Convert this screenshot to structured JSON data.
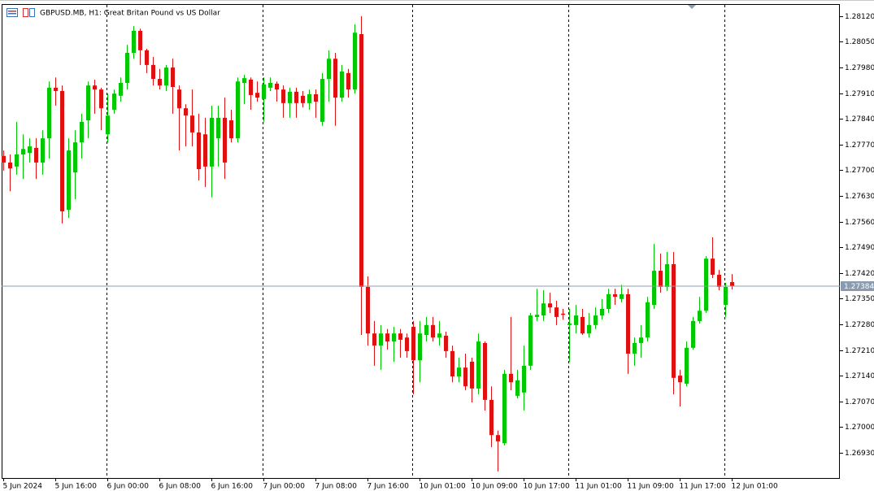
{
  "chart_data": {
    "type": "candlestick",
    "title": "GBPUSD.MB, H1:  Great Britan Pound vs US Dollar",
    "up_color": "#00c800",
    "down_color": "#e01010",
    "last_price": 1.27384,
    "ylim": [
      1.26861,
      1.28153
    ],
    "yticks": [
      {
        "value": 1.2812,
        "label": "1.28120"
      },
      {
        "value": 1.2805,
        "label": "1.28050"
      },
      {
        "value": 1.2798,
        "label": "1.27980"
      },
      {
        "value": 1.2791,
        "label": "1.27910"
      },
      {
        "value": 1.2784,
        "label": "1.27840"
      },
      {
        "value": 1.2777,
        "label": "1.27770"
      },
      {
        "value": 1.277,
        "label": "1.27700"
      },
      {
        "value": 1.2763,
        "label": "1.27630"
      },
      {
        "value": 1.2756,
        "label": "1.27560"
      },
      {
        "value": 1.2749,
        "label": "1.27490"
      },
      {
        "value": 1.2742,
        "label": "1.27420"
      },
      {
        "value": 1.2735,
        "label": "1.27350"
      },
      {
        "value": 1.2728,
        "label": "1.27280"
      },
      {
        "value": 1.2721,
        "label": "1.27210"
      },
      {
        "value": 1.2714,
        "label": "1.27140"
      },
      {
        "value": 1.2707,
        "label": "1.27070"
      },
      {
        "value": 1.27,
        "label": "1.27000"
      },
      {
        "value": 1.2693,
        "label": "1.26930"
      }
    ],
    "categories": [
      "5 Jun 2024",
      null,
      null,
      null,
      null,
      null,
      null,
      null,
      "5 Jun 16:00",
      null,
      null,
      null,
      null,
      null,
      null,
      null,
      "6 Jun 00:00",
      null,
      null,
      null,
      null,
      null,
      null,
      null,
      "6 Jun 08:00",
      null,
      null,
      null,
      null,
      null,
      null,
      null,
      "6 Jun 16:00",
      null,
      null,
      null,
      null,
      null,
      null,
      null,
      "7 Jun 00:00",
      null,
      null,
      null,
      null,
      null,
      null,
      null,
      "7 Jun 08:00",
      null,
      null,
      null,
      null,
      null,
      null,
      null,
      "7 Jun 16:00",
      null,
      null,
      null,
      null,
      null,
      null,
      null,
      "10 Jun 01:00",
      null,
      null,
      null,
      null,
      null,
      null,
      null,
      "10 Jun 09:00",
      null,
      null,
      null,
      null,
      null,
      null,
      null,
      "10 Jun 17:00",
      null,
      null,
      null,
      null,
      null,
      null,
      null,
      "11 Jun 01:00",
      null,
      null,
      null,
      null,
      null,
      null,
      null,
      "11 Jun 09:00",
      null,
      null,
      null,
      null,
      null,
      null,
      null,
      "11 Jun 17:00",
      null,
      null,
      null,
      null,
      null,
      null,
      null,
      "12 Jun 01:00"
    ],
    "open": [
      1.27739,
      1.27721,
      1.2771,
      1.27743,
      1.27747,
      1.27761,
      1.27721,
      1.27787,
      1.27925,
      1.27916,
      1.27592,
      1.27694,
      1.27776,
      1.27836,
      1.27931,
      1.2792,
      1.27798,
      1.27865,
      1.27903,
      1.27938,
      1.2802,
      1.2808,
      1.28027,
      1.27987,
      1.27949,
      1.27931,
      1.2798,
      1.2792,
      1.27869,
      1.27849,
      1.27803,
      1.27798,
      1.2771,
      1.27787,
      1.27843,
      1.27836,
      1.27787,
      1.27938,
      1.27947,
      1.27911,
      1.27894,
      1.27925,
      1.27936,
      1.2792,
      1.27883,
      1.27914,
      1.27903,
      1.27883,
      1.27907,
      1.27832,
      1.27949,
      1.28004,
      1.27898,
      1.27965,
      1.2792,
      1.28071,
      1.27382,
      1.27255,
      1.27222,
      1.27255,
      1.27233,
      1.27255,
      1.27244,
      1.27273,
      1.27182,
      1.27251,
      1.27278,
      1.27244,
      1.27249,
      1.27207,
      1.27138,
      1.27162,
      1.27178,
      1.27105,
      1.27229,
      1.27074,
      1.26978,
      1.26956,
      1.27145,
      1.27085,
      1.27094,
      1.27167,
      1.273,
      1.27304,
      1.27337,
      1.27326,
      1.27309,
      1.27278,
      1.27278,
      1.273,
      1.27255,
      1.27278,
      1.27304,
      1.27322,
      1.27362,
      1.27349,
      1.27362,
      1.272,
      1.27229,
      1.27244,
      1.27333,
      1.27426,
      1.27382,
      1.27444,
      1.2714,
      1.27118,
      1.27216,
      1.27289,
      1.27317,
      1.27459,
      1.27415,
      1.27333,
      1.27395
    ],
    "high": [
      1.27754,
      1.27743,
      1.27832,
      1.27798,
      1.27787,
      1.27787,
      1.27809,
      1.27942,
      1.27953,
      1.27931,
      1.27787,
      1.27809,
      1.27854,
      1.27942,
      1.27947,
      1.27925,
      1.27909,
      1.2792,
      1.27953,
      1.28042,
      1.28093,
      1.28086,
      1.28031,
      1.28009,
      1.27976,
      1.27987,
      1.28004,
      1.27931,
      1.2788,
      1.2792,
      1.27854,
      1.27843,
      1.27876,
      1.27876,
      1.27898,
      1.27865,
      1.27953,
      1.2796,
      1.27953,
      1.27942,
      1.27953,
      1.27953,
      1.27942,
      1.27931,
      1.27925,
      1.27925,
      1.27916,
      1.2792,
      1.2792,
      1.27965,
      1.28027,
      1.2802,
      1.27987,
      1.27976,
      1.28098,
      1.2812,
      1.27411,
      1.27289,
      1.27278,
      1.27267,
      1.27273,
      1.27267,
      1.27255,
      1.27289,
      1.27289,
      1.273,
      1.273,
      1.27289,
      1.2726,
      1.27222,
      1.27189,
      1.272,
      1.27189,
      1.27255,
      1.27233,
      1.27111,
      1.2699,
      1.27156,
      1.273,
      1.27156,
      1.27222,
      1.27311,
      1.27377,
      1.27373,
      1.27366,
      1.27344,
      1.27322,
      1.27322,
      1.27333,
      1.27322,
      1.27311,
      1.27326,
      1.27349,
      1.27377,
      1.27377,
      1.27388,
      1.27377,
      1.27244,
      1.27278,
      1.27355,
      1.27499,
      1.27473,
      1.27477,
      1.27477,
      1.27156,
      1.27233,
      1.273,
      1.27355,
      1.27466,
      1.27517,
      1.27428,
      1.27393,
      1.27417
    ],
    "low": [
      1.27699,
      1.27643,
      1.27688,
      1.27676,
      1.27721,
      1.27676,
      1.27688,
      1.27732,
      1.27876,
      1.27555,
      1.2757,
      1.27621,
      1.27732,
      1.27787,
      1.27854,
      1.27809,
      1.27776,
      1.27854,
      1.27887,
      1.2792,
      1.28004,
      1.27987,
      1.27965,
      1.27931,
      1.2792,
      1.27916,
      1.27854,
      1.27754,
      1.27765,
      1.27765,
      1.27672,
      1.27654,
      1.27626,
      1.2771,
      1.27676,
      1.27776,
      1.27776,
      1.2788,
      1.27865,
      1.27887,
      1.27832,
      1.27916,
      1.27887,
      1.27843,
      1.27843,
      1.27843,
      1.27871,
      1.27865,
      1.27843,
      1.27821,
      1.27887,
      1.27821,
      1.27887,
      1.27898,
      1.27909,
      1.27251,
      1.27222,
      1.27167,
      1.27156,
      1.27211,
      1.27178,
      1.27189,
      1.27189,
      1.27089,
      1.27122,
      1.27233,
      1.27233,
      1.27222,
      1.27189,
      1.27122,
      1.27122,
      1.271,
      1.27067,
      1.27089,
      1.27045,
      1.26945,
      1.26879,
      1.2695,
      1.271,
      1.27078,
      1.27045,
      1.27156,
      1.27289,
      1.27289,
      1.27311,
      1.27278,
      1.27293,
      1.27178,
      1.27255,
      1.27251,
      1.27244,
      1.27267,
      1.27293,
      1.27311,
      1.27333,
      1.2734,
      1.27145,
      1.27167,
      1.27189,
      1.27233,
      1.27322,
      1.27366,
      1.27371,
      1.27089,
      1.27056,
      1.27111,
      1.27211,
      1.27282,
      1.27311,
      1.27406,
      1.27373,
      1.273,
      1.27375
    ],
    "close": [
      1.27721,
      1.27705,
      1.27743,
      1.27758,
      1.27765,
      1.27721,
      1.27787,
      1.27925,
      1.27916,
      1.27588,
      1.27754,
      1.27776,
      1.27832,
      1.27931,
      1.2792,
      1.27869,
      1.27849,
      1.27909,
      1.27938,
      1.2802,
      1.2808,
      1.28027,
      1.27987,
      1.27949,
      1.27931,
      1.2798,
      1.27927,
      1.27869,
      1.27849,
      1.27803,
      1.27703,
      1.2771,
      1.27843,
      1.27843,
      1.27721,
      1.27787,
      1.27942,
      1.27951,
      1.27905,
      1.27898,
      1.27934,
      1.27938,
      1.2792,
      1.27883,
      1.27914,
      1.27883,
      1.27883,
      1.27907,
      1.27887,
      1.27949,
      1.28004,
      1.27898,
      1.27969,
      1.2792,
      1.28075,
      1.27382,
      1.27255,
      1.27222,
      1.27255,
      1.27233,
      1.27255,
      1.27238,
      1.27207,
      1.27182,
      1.27255,
      1.27278,
      1.27244,
      1.27255,
      1.27207,
      1.27138,
      1.27162,
      1.27111,
      1.27105,
      1.27233,
      1.27074,
      1.26978,
      1.26961,
      1.27145,
      1.27122,
      1.27127,
      1.27167,
      1.27304,
      1.27306,
      1.27337,
      1.27326,
      1.273,
      1.27306,
      1.27282,
      1.27304,
      1.27255,
      1.27278,
      1.27304,
      1.27322,
      1.27362,
      1.27355,
      1.27362,
      1.272,
      1.27229,
      1.27244,
      1.2734,
      1.27426,
      1.27382,
      1.27444,
      1.27134,
      1.27122,
      1.27216,
      1.27289,
      1.27317,
      1.27459,
      1.27415,
      1.27382,
      1.27382,
      1.27384
    ]
  }
}
